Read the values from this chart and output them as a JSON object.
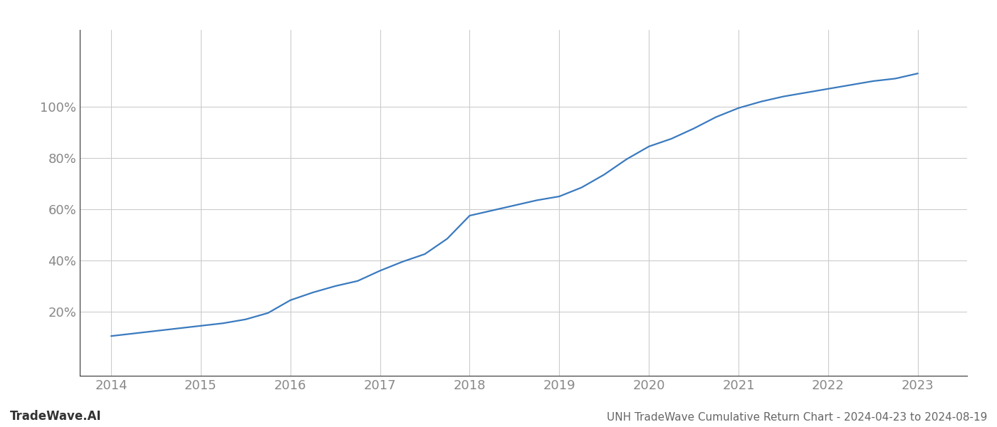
{
  "title": "UNH TradeWave Cumulative Return Chart - 2024-04-23 to 2024-08-19",
  "watermark": "TradeWave.AI",
  "line_color": "#3a7abf",
  "background_color": "#ffffff",
  "grid_color": "#cccccc",
  "x_years": [
    2014.0,
    2014.25,
    2014.5,
    2014.75,
    2015.0,
    2015.25,
    2015.5,
    2015.75,
    2016.0,
    2016.25,
    2016.5,
    2016.75,
    2017.0,
    2017.25,
    2017.5,
    2017.75,
    2018.0,
    2018.25,
    2018.5,
    2018.75,
    2019.0,
    2019.25,
    2019.5,
    2019.75,
    2020.0,
    2020.25,
    2020.5,
    2020.75,
    2021.0,
    2021.25,
    2021.5,
    2021.75,
    2022.0,
    2022.25,
    2022.5,
    2022.75,
    2023.0
  ],
  "y_values": [
    10.5,
    11.5,
    12.5,
    13.5,
    14.5,
    15.5,
    17.0,
    19.5,
    24.5,
    27.5,
    30.0,
    32.0,
    36.0,
    39.5,
    42.5,
    48.5,
    57.5,
    59.5,
    61.5,
    63.5,
    65.0,
    68.5,
    73.5,
    79.5,
    84.5,
    87.5,
    91.5,
    96.0,
    99.5,
    102.0,
    104.0,
    105.5,
    107.0,
    108.5,
    110.0,
    111.0,
    113.0
  ],
  "xticks": [
    2014,
    2015,
    2016,
    2017,
    2018,
    2019,
    2020,
    2021,
    2022,
    2023
  ],
  "yticks": [
    20,
    40,
    60,
    80,
    100
  ],
  "ylim": [
    -5,
    130
  ],
  "xlim": [
    2013.65,
    2023.55
  ],
  "line_width": 1.6,
  "title_fontsize": 11,
  "watermark_fontsize": 12,
  "tick_fontsize": 13,
  "title_color": "#666666",
  "watermark_color": "#333333",
  "tick_color": "#888888",
  "spine_color": "#333333"
}
